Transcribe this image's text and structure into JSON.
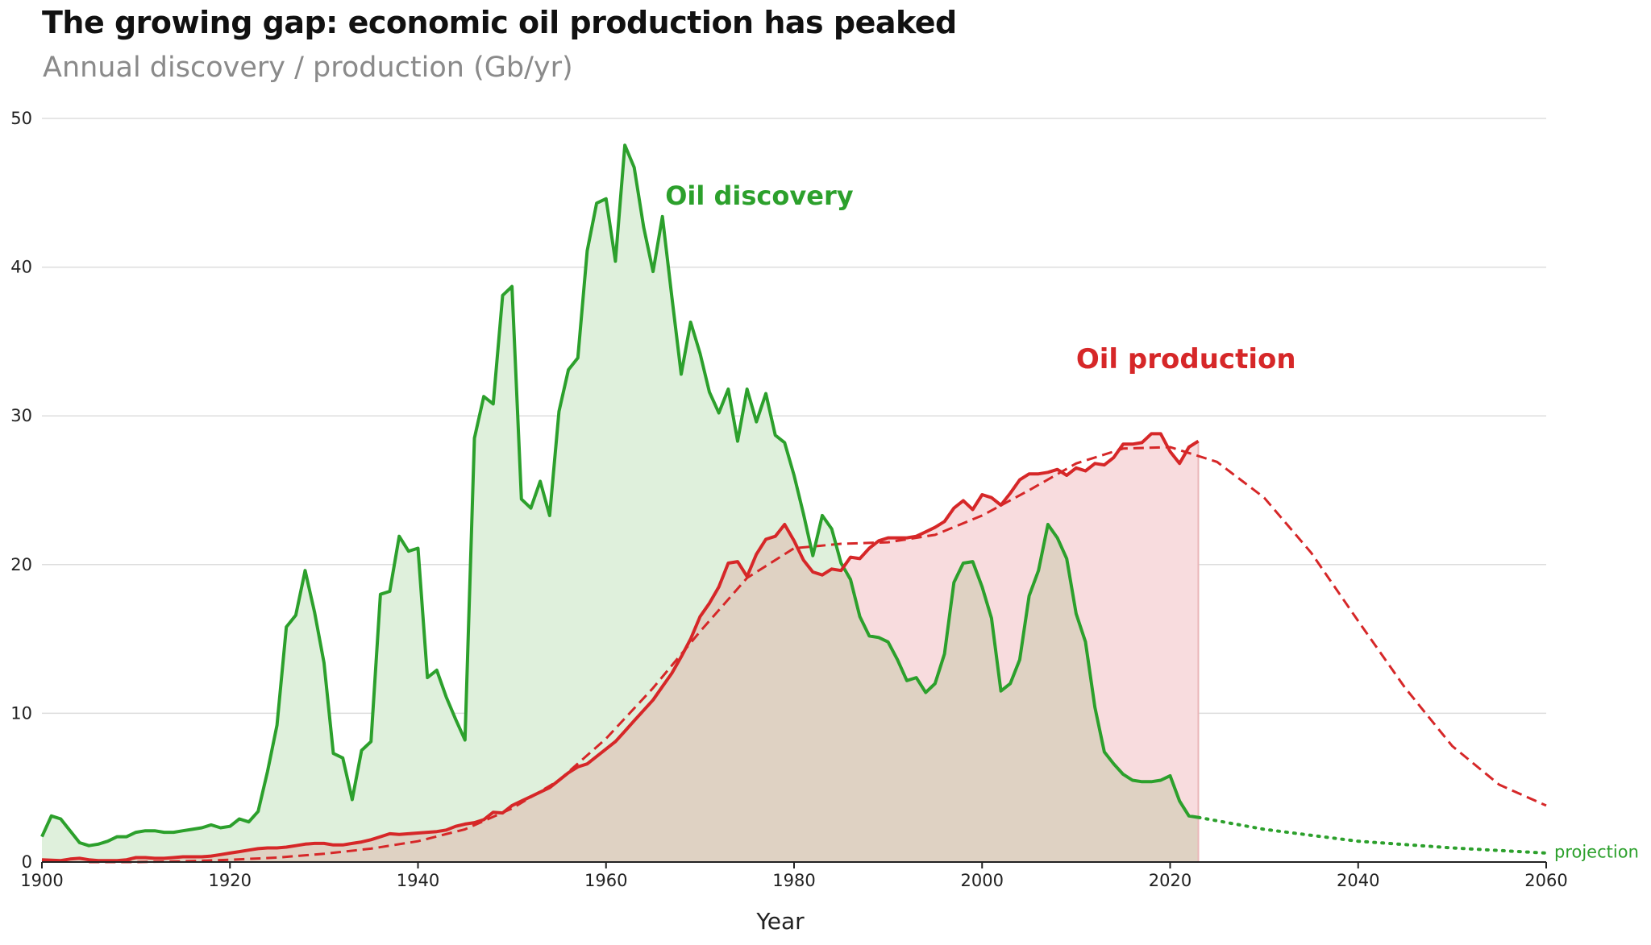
{
  "chart_data": {
    "type": "line",
    "title": "The growing gap: economic oil production has peaked",
    "subtitle": "Annual discovery / production (Gb/yr)",
    "xlabel": "Year",
    "ylabel": "",
    "xlim": [
      1900,
      2060
    ],
    "ylim": [
      0,
      50
    ],
    "xticks": [
      1900,
      1920,
      1940,
      1960,
      1980,
      2000,
      2020,
      2040,
      2060
    ],
    "yticks": [
      0,
      10,
      20,
      30,
      40,
      50
    ],
    "grid": true,
    "annotations": {
      "discovery": "Oil discovery",
      "production": "Oil production",
      "projection": "projection"
    },
    "colors": {
      "discovery": "#2ca02c",
      "discovery_fill": "#dff0dc",
      "production": "#d62728",
      "production_fill": "#f8dcde",
      "overlap_fill": "#dfd2c3",
      "grid": "#dddddd"
    },
    "series": [
      {
        "id": "discovery",
        "style": "solid",
        "fill": true,
        "x": [
          1900,
          1901,
          1902,
          1903,
          1904,
          1905,
          1906,
          1907,
          1908,
          1909,
          1910,
          1911,
          1912,
          1913,
          1914,
          1915,
          1916,
          1917,
          1918,
          1919,
          1920,
          1921,
          1922,
          1923,
          1924,
          1925,
          1926,
          1927,
          1928,
          1929,
          1930,
          1931,
          1932,
          1933,
          1934,
          1935,
          1936,
          1937,
          1938,
          1939,
          1940,
          1941,
          1942,
          1943,
          1944,
          1945,
          1946,
          1947,
          1948,
          1949,
          1950,
          1951,
          1952,
          1953,
          1954,
          1955,
          1956,
          1957,
          1958,
          1959,
          1960,
          1961,
          1962,
          1963,
          1964,
          1965,
          1966,
          1967,
          1968,
          1969,
          1970,
          1971,
          1972,
          1973,
          1974,
          1975,
          1976,
          1977,
          1978,
          1979,
          1980,
          1981,
          1982,
          1983,
          1984,
          1985,
          1986,
          1987,
          1988,
          1989,
          1990,
          1991,
          1992,
          1993,
          1994,
          1995,
          1996,
          1997,
          1998,
          1999,
          2000,
          2001,
          2002,
          2003,
          2004,
          2005,
          2006,
          2007,
          2008,
          2009,
          2010,
          2011,
          2012,
          2013,
          2014,
          2015,
          2016,
          2017,
          2018,
          2019,
          2020,
          2021,
          2022,
          2023
        ],
        "values": [
          1.7,
          3.1,
          2.9,
          2.1,
          1.3,
          1.1,
          1.2,
          1.4,
          1.7,
          1.7,
          2.0,
          2.1,
          2.1,
          2.0,
          2.0,
          2.1,
          2.2,
          2.3,
          2.5,
          2.3,
          2.4,
          2.9,
          2.7,
          3.4,
          6.1,
          9.2,
          15.8,
          16.6,
          19.6,
          16.8,
          13.4,
          7.3,
          7.0,
          4.2,
          7.5,
          8.1,
          18.0,
          18.2,
          21.9,
          20.9,
          21.1,
          12.4,
          12.9,
          11.1,
          9.6,
          8.2,
          28.5,
          31.3,
          30.8,
          38.1,
          38.7,
          24.4,
          23.8,
          25.6,
          23.3,
          30.3,
          33.1,
          33.9,
          41.1,
          44.3,
          44.6,
          40.4,
          48.2,
          46.7,
          42.7,
          39.7,
          43.4,
          38.0,
          32.8,
          36.3,
          34.2,
          31.6,
          30.2,
          31.8,
          28.3,
          31.8,
          29.6,
          31.5,
          28.7,
          28.2,
          26.0,
          23.4,
          20.6,
          23.3,
          22.4,
          20.1,
          19.0,
          16.5,
          15.2,
          15.1,
          14.8,
          13.6,
          12.2,
          12.4,
          11.4,
          12.0,
          14.0,
          18.8,
          20.1,
          20.2,
          18.5,
          16.4,
          11.5,
          12.0,
          13.6,
          17.9,
          19.6,
          22.7,
          21.8,
          20.4,
          16.7,
          14.8,
          10.4,
          7.4,
          6.6,
          5.9,
          5.5,
          5.4,
          5.4,
          5.5,
          5.8,
          4.1,
          3.1,
          3.0
        ]
      },
      {
        "id": "production",
        "style": "solid",
        "fill": true,
        "x": [
          1900,
          1901,
          1902,
          1903,
          1904,
          1905,
          1906,
          1907,
          1908,
          1909,
          1910,
          1911,
          1912,
          1913,
          1914,
          1915,
          1916,
          1917,
          1918,
          1919,
          1920,
          1921,
          1922,
          1923,
          1924,
          1925,
          1926,
          1927,
          1928,
          1929,
          1930,
          1931,
          1932,
          1933,
          1934,
          1935,
          1936,
          1937,
          1938,
          1939,
          1940,
          1941,
          1942,
          1943,
          1944,
          1945,
          1946,
          1947,
          1948,
          1949,
          1950,
          1951,
          1952,
          1953,
          1954,
          1955,
          1956,
          1957,
          1958,
          1959,
          1960,
          1961,
          1962,
          1963,
          1964,
          1965,
          1966,
          1967,
          1968,
          1969,
          1970,
          1971,
          1972,
          1973,
          1974,
          1975,
          1976,
          1977,
          1978,
          1979,
          1980,
          1981,
          1982,
          1983,
          1984,
          1985,
          1986,
          1987,
          1988,
          1989,
          1990,
          1991,
          1992,
          1993,
          1994,
          1995,
          1996,
          1997,
          1998,
          1999,
          2000,
          2001,
          2002,
          2003,
          2004,
          2005,
          2006,
          2007,
          2008,
          2009,
          2010,
          2011,
          2012,
          2013,
          2014,
          2015,
          2016,
          2017,
          2018,
          2019,
          2020,
          2021,
          2022,
          2023
        ],
        "values": [
          0.15,
          0.12,
          0.1,
          0.2,
          0.25,
          0.15,
          0.1,
          0.1,
          0.1,
          0.15,
          0.3,
          0.3,
          0.25,
          0.25,
          0.3,
          0.35,
          0.35,
          0.35,
          0.4,
          0.5,
          0.6,
          0.7,
          0.8,
          0.9,
          0.95,
          0.95,
          1.0,
          1.1,
          1.2,
          1.25,
          1.25,
          1.15,
          1.15,
          1.25,
          1.35,
          1.5,
          1.7,
          1.9,
          1.85,
          1.9,
          1.95,
          2.0,
          2.05,
          2.15,
          2.4,
          2.55,
          2.65,
          2.85,
          3.35,
          3.3,
          3.8,
          4.1,
          4.4,
          4.7,
          5.0,
          5.5,
          6.0,
          6.4,
          6.6,
          7.1,
          7.6,
          8.1,
          8.8,
          9.5,
          10.2,
          10.9,
          11.8,
          12.7,
          13.8,
          15.0,
          16.5,
          17.4,
          18.5,
          20.1,
          20.2,
          19.2,
          20.7,
          21.7,
          21.9,
          22.7,
          21.6,
          20.3,
          19.5,
          19.3,
          19.7,
          19.6,
          20.5,
          20.4,
          21.1,
          21.6,
          21.8,
          21.8,
          21.8,
          21.9,
          22.2,
          22.5,
          22.9,
          23.8,
          24.3,
          23.7,
          24.7,
          24.5,
          24.0,
          24.8,
          25.7,
          26.1,
          26.1,
          26.2,
          26.4,
          26.0,
          26.5,
          26.3,
          26.8,
          26.7,
          27.2,
          28.1,
          28.1,
          28.2,
          28.8,
          28.8,
          27.6,
          26.8,
          27.9,
          28.3
        ]
      },
      {
        "id": "production-model",
        "style": "dashed",
        "x": [
          1905,
          1910,
          1915,
          1920,
          1925,
          1930,
          1935,
          1940,
          1945,
          1950,
          1955,
          1960,
          1965,
          1970,
          1975,
          1980,
          1985,
          1990,
          1995,
          2000,
          2005,
          2010,
          2015,
          2020,
          2025,
          2030,
          2035,
          2040,
          2045,
          2050,
          2055,
          2060
        ],
        "values": [
          0.0,
          0.0,
          0.05,
          0.15,
          0.3,
          0.55,
          0.9,
          1.4,
          2.2,
          3.6,
          5.5,
          8.3,
          11.7,
          15.5,
          19.1,
          21.1,
          21.4,
          21.5,
          22.0,
          23.3,
          25.0,
          26.8,
          27.8,
          27.9,
          26.9,
          24.5,
          20.8,
          16.2,
          11.7,
          7.8,
          5.2,
          3.8
        ]
      },
      {
        "id": "discovery-projection",
        "style": "dotted",
        "x": [
          2023,
          2030,
          2040,
          2050,
          2060
        ],
        "values": [
          3.0,
          2.2,
          1.4,
          0.95,
          0.6
        ]
      }
    ]
  }
}
